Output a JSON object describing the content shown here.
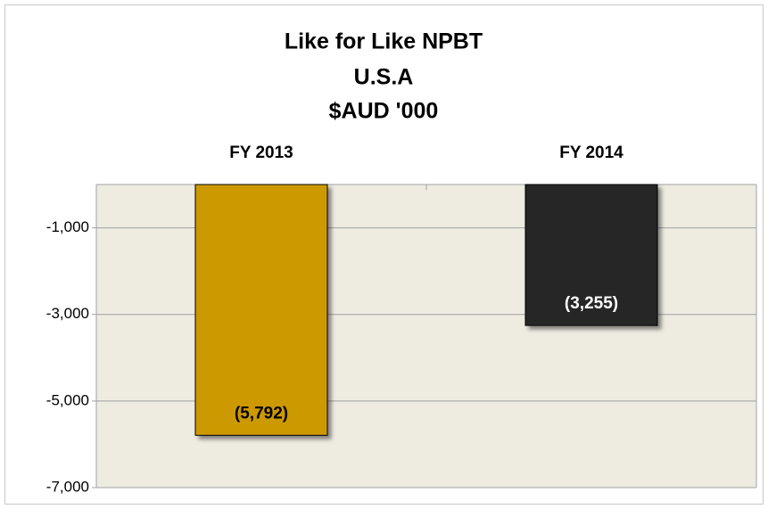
{
  "chart_data": {
    "type": "bar",
    "title": [
      "Like for Like NPBT",
      "U.S.A",
      "$AUD '000"
    ],
    "categories": [
      "FY 2013",
      "FY 2014"
    ],
    "values": [
      -5792,
      -3255
    ],
    "value_labels": [
      "(5,792)",
      "(3,255)"
    ],
    "colors": [
      "#cc9900",
      "#262626"
    ],
    "label_colors": [
      "#000000",
      "#ffffff"
    ],
    "ylim": [
      -7000,
      0
    ],
    "yticks": [
      {
        "value": -1000,
        "label": "-1,000"
      },
      {
        "value": -3000,
        "label": "-3,000"
      },
      {
        "value": -5000,
        "label": "-5,000"
      },
      {
        "value": -7000,
        "label": "-7,000"
      }
    ],
    "grid": true
  }
}
